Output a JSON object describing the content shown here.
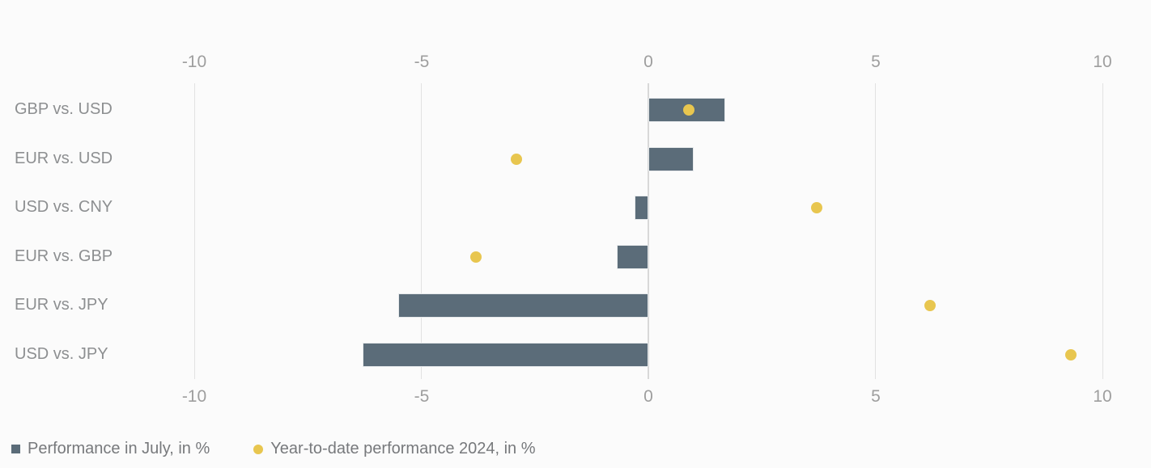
{
  "chart_data": {
    "type": "bar",
    "orientation": "horizontal",
    "title": "",
    "categories": [
      "GBP vs. USD",
      "EUR vs. USD",
      "USD vs. CNY",
      "EUR vs. GBP",
      "EUR vs. JPY",
      "USD vs. JPY"
    ],
    "series": [
      {
        "name": "Performance in July, in %",
        "type": "bar",
        "color": "#5b6c79",
        "values": [
          1.7,
          1.0,
          -0.3,
          -0.7,
          -5.5,
          -6.3
        ]
      },
      {
        "name": "Year-to-date performance 2024, in %",
        "type": "scatter",
        "color": "#e8c64f",
        "values": [
          0.9,
          -2.9,
          3.7,
          -3.8,
          6.2,
          9.3
        ]
      }
    ],
    "x_ticks": [
      -10,
      -5,
      0,
      5,
      10
    ],
    "x_tick_labels": [
      "-10",
      "-5",
      "0",
      "5",
      "10"
    ],
    "xlim": [
      -10,
      10
    ],
    "xlabel": "",
    "ylabel": "",
    "grid": true,
    "axis_labels_position": "top-and-bottom",
    "legend_position": "bottom-left",
    "colors": {
      "background": "#fbfbfb",
      "gridline": "#e2e2e2",
      "zeroline": "#d8d8d8",
      "tick_label": "#9e9e9e",
      "category_label": "#8d8f91",
      "legend_text": "#77797c"
    }
  }
}
